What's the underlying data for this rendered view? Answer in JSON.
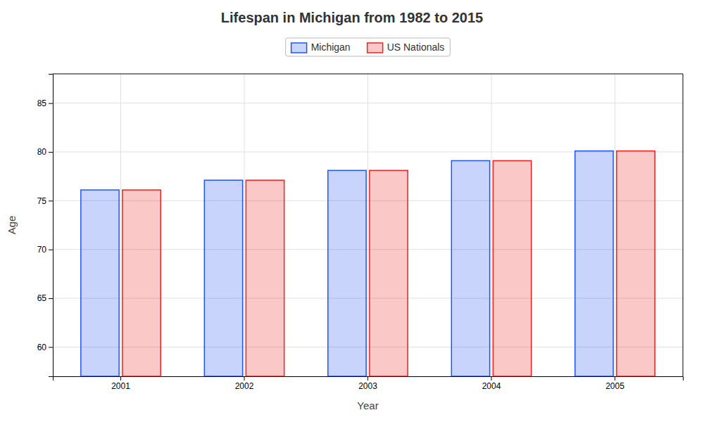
{
  "chart_data": {
    "type": "bar",
    "title": "Lifespan in Michigan from 1982 to 2015",
    "xlabel": "Year",
    "ylabel": "Age",
    "categories": [
      "2001",
      "2002",
      "2003",
      "2004",
      "2005"
    ],
    "series": [
      {
        "name": "Michigan",
        "color": "#2255ee",
        "values": [
          76.1,
          77.1,
          78.1,
          79.1,
          80.1
        ]
      },
      {
        "name": "US Nationals",
        "color": "#ee2222",
        "values": [
          76.1,
          77.1,
          78.1,
          79.1,
          80.1
        ]
      }
    ],
    "ylim": [
      57,
      88
    ],
    "yticks": [
      60,
      65,
      70,
      75,
      80,
      85
    ],
    "grid": true,
    "legend": "top"
  }
}
